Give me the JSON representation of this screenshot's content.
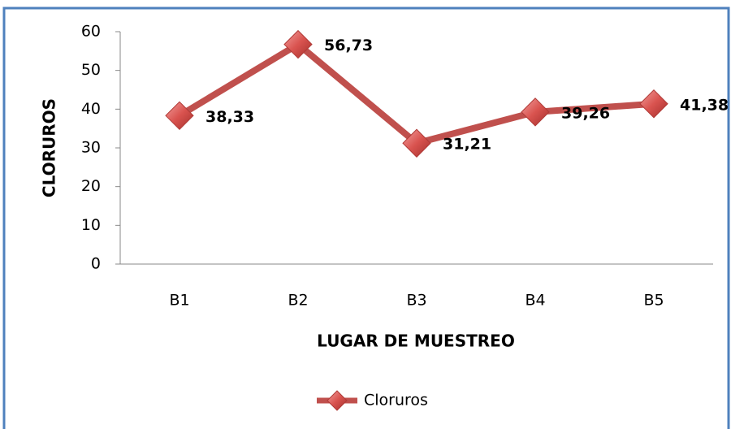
{
  "chart_data": {
    "type": "line",
    "x_label": "LUGAR DE MUESTREO",
    "y_label": "CLORUROS",
    "categories": [
      "B1",
      "B2",
      "B3",
      "B4",
      "B5"
    ],
    "series": [
      {
        "name": "Cloruros",
        "color": "#c0504d",
        "values": [
          38.33,
          56.73,
          31.21,
          39.26,
          41.38
        ],
        "value_labels": [
          "38,33",
          "56,73",
          "31,21",
          "39,26",
          "41,38"
        ]
      }
    ],
    "ylim": [
      0,
      60
    ],
    "yticks": [
      0,
      10,
      20,
      30,
      40,
      50,
      60
    ],
    "legend": "bottom"
  }
}
